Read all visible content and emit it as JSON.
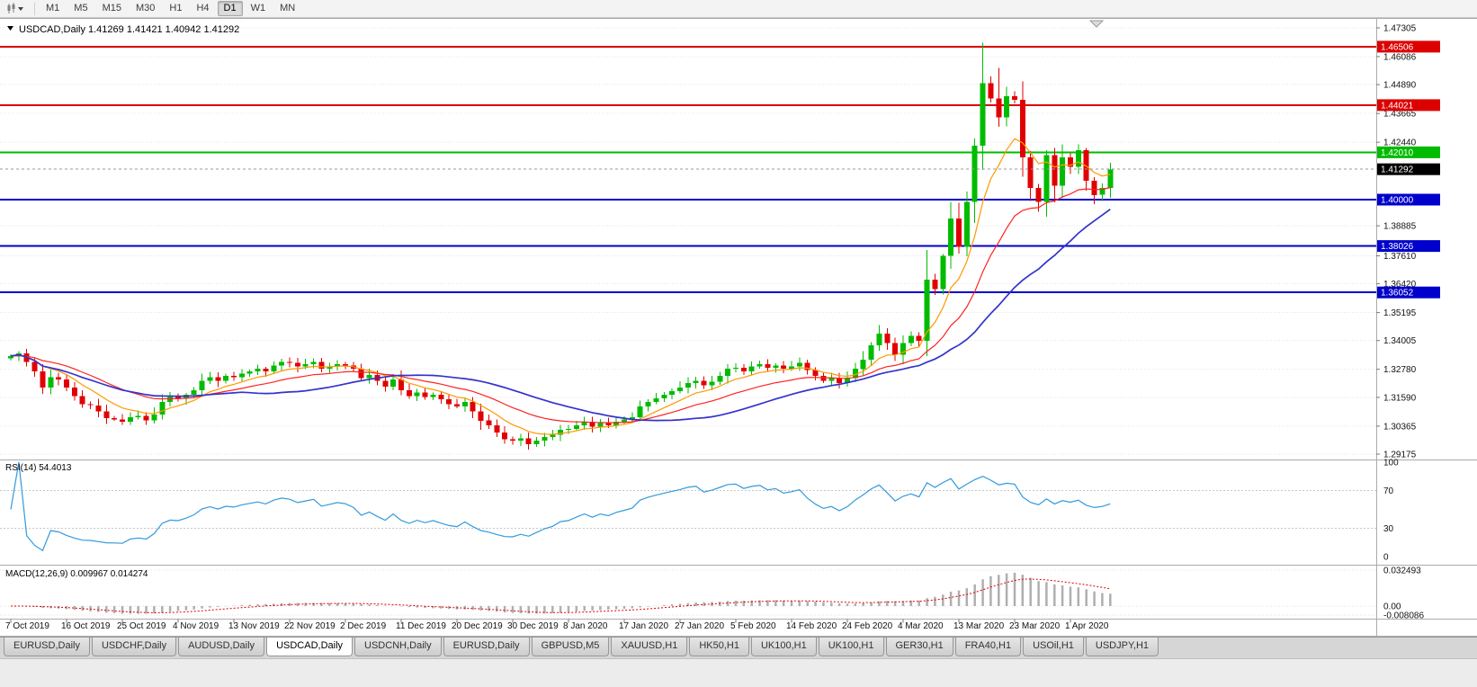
{
  "toolbar": {
    "timeframes": [
      "M1",
      "M5",
      "M15",
      "M30",
      "H1",
      "H4",
      "D1",
      "W1",
      "MN"
    ],
    "active_timeframe": "D1"
  },
  "chart_data": {
    "type": "candlestick",
    "symbol": "USDCAD",
    "period": "Daily",
    "title_text": "USDCAD,Daily 1.41269 1.41421 1.40942 1.41292",
    "open": "1.41269",
    "high": "1.41421",
    "low": "1.40942",
    "close": "1.41292",
    "y_range": [
      1.29175,
      1.47305
    ],
    "y_ticks": [
      1.47305,
      1.46086,
      1.4489,
      1.43665,
      1.4244,
      1.38885,
      1.3761,
      1.3642,
      1.35195,
      1.34005,
      1.3278,
      1.3159,
      1.30365,
      1.29175
    ],
    "y_tick_labels": [
      "1.47305",
      "1.46086",
      "1.44890",
      "1.43665",
      "1.42440",
      "1.38885",
      "1.37610",
      "1.36420",
      "1.35195",
      "1.34005",
      "1.32780",
      "1.31590",
      "1.30365",
      "1.29175"
    ],
    "levels": [
      {
        "value": 1.46506,
        "label": "1.46506",
        "color": "#DD0000"
      },
      {
        "value": 1.44021,
        "label": "1.44021",
        "color": "#DD0000"
      },
      {
        "value": 1.4201,
        "label": "1.42010",
        "color": "#00BB00"
      },
      {
        "value": 1.4,
        "label": "1.40000",
        "color": "#0000CC"
      },
      {
        "value": 1.38026,
        "label": "1.38026",
        "color": "#0000CC"
      },
      {
        "value": 1.36052,
        "label": "1.36052",
        "color": "#0000CC"
      }
    ],
    "current_price": {
      "value": 1.41292,
      "label": "1.41292",
      "badge_color": "#000000"
    },
    "x_tick_labels": [
      "7 Oct 2019",
      "16 Oct 2019",
      "25 Oct 2019",
      "4 Nov 2019",
      "13 Nov 2019",
      "22 Nov 2019",
      "2 Dec 2019",
      "11 Dec 2019",
      "20 Dec 2019",
      "30 Dec 2019",
      "8 Jan 2020",
      "17 Jan 2020",
      "27 Jan 2020",
      "5 Feb 2020",
      "14 Feb 2020",
      "24 Feb 2020",
      "4 Mar 2020",
      "13 Mar 2020",
      "23 Mar 2020",
      "1 Apr 2020"
    ],
    "x_tick_indices": [
      0,
      7,
      14,
      21,
      28,
      35,
      42,
      49,
      56,
      63,
      70,
      77,
      84,
      91,
      98,
      105,
      112,
      119,
      126,
      133
    ],
    "closes": [
      1.3335,
      1.3345,
      1.331,
      1.327,
      1.32,
      1.3245,
      1.3235,
      1.32,
      1.3165,
      1.313,
      1.3125,
      1.31,
      1.307,
      1.3065,
      1.3055,
      1.3075,
      1.308,
      1.306,
      1.3085,
      1.314,
      1.316,
      1.3155,
      1.317,
      1.319,
      1.323,
      1.3245,
      1.323,
      1.325,
      1.3245,
      1.326,
      1.327,
      1.328,
      1.327,
      1.3295,
      1.331,
      1.3305,
      1.329,
      1.33,
      1.331,
      1.328,
      1.329,
      1.33,
      1.3295,
      1.328,
      1.324,
      1.3255,
      1.323,
      1.3205,
      1.3235,
      1.319,
      1.3165,
      1.318,
      1.316,
      1.317,
      1.315,
      1.313,
      1.312,
      1.314,
      1.31,
      1.306,
      1.304,
      1.301,
      1.298,
      1.2975,
      1.2985,
      1.296,
      1.2975,
      1.299,
      1.3,
      1.302,
      1.3025,
      1.304,
      1.3055,
      1.3035,
      1.305,
      1.304,
      1.3055,
      1.3065,
      1.3075,
      1.312,
      1.314,
      1.3155,
      1.317,
      1.3185,
      1.32,
      1.322,
      1.323,
      1.321,
      1.3225,
      1.325,
      1.328,
      1.3285,
      1.327,
      1.329,
      1.33,
      1.3285,
      1.3295,
      1.328,
      1.329,
      1.3305,
      1.3275,
      1.325,
      1.323,
      1.324,
      1.322,
      1.324,
      1.328,
      1.332,
      1.338,
      1.343,
      1.339,
      1.334,
      1.339,
      1.342,
      1.34,
      1.366,
      1.362,
      1.376,
      1.392,
      1.38,
      1.399,
      1.423,
      1.4495,
      1.443,
      1.435,
      1.444,
      1.4425,
      1.418,
      1.405,
      1.399,
      1.419,
      1.406,
      1.418,
      1.414,
      1.421,
      1.408,
      1.402,
      1.405,
      1.4129
    ],
    "wick_high_overrides": {
      "122": 1.4668,
      "124": 1.456
    },
    "colors": {
      "up": "#00BB00",
      "down": "#E00000",
      "ma_fast": "#FF9900",
      "ma_mid": "#FF2222",
      "ma_slow": "#3333CC",
      "grid": "#E4E4E4",
      "price_line": "#999999"
    }
  },
  "rsi": {
    "label": "RSI(14) 54.4013",
    "period": 14,
    "axis_labels": [
      "100",
      "70",
      "30",
      "0"
    ],
    "axis_values": [
      100,
      70,
      30,
      0
    ],
    "dashed_levels": [
      70,
      30
    ],
    "line_color": "#3399DD"
  },
  "macd": {
    "label": "MACD(12,26,9) 0.009967 0.014274",
    "fast": 12,
    "slow": 26,
    "signal": 9,
    "axis_labels": [
      "0.032493",
      "0.00",
      "-0.008086"
    ],
    "axis_values": [
      0.032493,
      0,
      -0.008086
    ],
    "hist_color": "#AFAFAF",
    "signal_color": "#E00000"
  },
  "tabs": {
    "items": [
      "EURUSD,Daily",
      "USDCHF,Daily",
      "AUDUSD,Daily",
      "USDCAD,Daily",
      "USDCNH,Daily",
      "EURUSD,Daily",
      "GBPUSD,M5",
      "XAUUSD,H1",
      "HK50,H1",
      "UK100,H1",
      "UK100,H1",
      "GER30,H1",
      "FRA40,H1",
      "USOil,H1",
      "USDJPY,H1"
    ],
    "active_index": 3
  }
}
